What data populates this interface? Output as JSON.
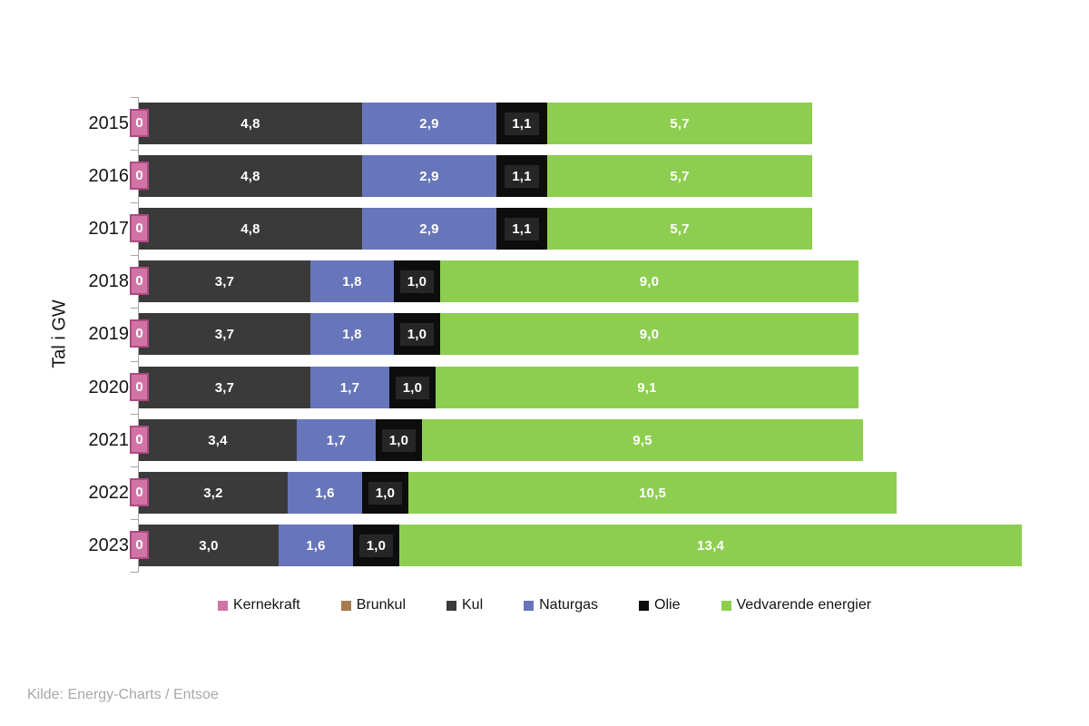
{
  "source_note": "Kilde: Energy-Charts / Entsoe",
  "chart_data": {
    "type": "bar",
    "orientation": "horizontal",
    "stacked": true,
    "title": "",
    "ylabel": "Tal i GW",
    "xlabel": "",
    "xlim": [
      0,
      20
    ],
    "grid": false,
    "legend_position": "bottom",
    "value_decimal_separator": ",",
    "categories": [
      "2015",
      "2016",
      "2017",
      "2018",
      "2019",
      "2020",
      "2021",
      "2022",
      "2023"
    ],
    "series": [
      {
        "name": "Kernekraft",
        "color": "#d273a6",
        "border_color": "#ae4a80",
        "label_style": "badge",
        "values": [
          0,
          0,
          0,
          0,
          0,
          0,
          0,
          0,
          0
        ]
      },
      {
        "name": "Brunkul",
        "color": "#a67c4f",
        "label_style": "plain",
        "values": [
          0,
          0,
          0,
          0,
          0,
          0,
          0,
          0,
          0
        ]
      },
      {
        "name": "Kul",
        "color": "#3a3a3a",
        "label_style": "plain",
        "values": [
          4.8,
          4.8,
          4.8,
          3.7,
          3.7,
          3.7,
          3.4,
          3.2,
          3.0
        ]
      },
      {
        "name": "Naturgas",
        "color": "#6775ba",
        "label_style": "plain",
        "values": [
          2.9,
          2.9,
          2.9,
          1.8,
          1.8,
          1.7,
          1.7,
          1.6,
          1.6
        ]
      },
      {
        "name": "Olie",
        "color": "#0d0d0d",
        "label_style": "boxed",
        "label_box_color": "#262626",
        "values": [
          1.1,
          1.1,
          1.1,
          1.0,
          1.0,
          1.0,
          1.0,
          1.0,
          1.0
        ]
      },
      {
        "name": "Vedvarende energier",
        "color": "#8dce50",
        "label_style": "plain",
        "values": [
          5.7,
          5.7,
          5.7,
          9.0,
          9.0,
          9.1,
          9.5,
          10.5,
          13.4
        ]
      }
    ]
  }
}
